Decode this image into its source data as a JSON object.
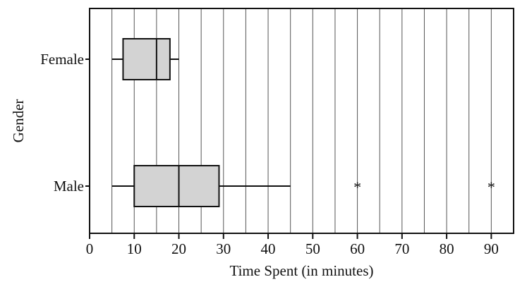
{
  "chart_data": {
    "type": "boxplot",
    "orientation": "horizontal",
    "title": "",
    "xlabel": "Time Spent (in minutes)",
    "ylabel": "Gender",
    "xlim": [
      0,
      95
    ],
    "xticks": [
      0,
      10,
      20,
      30,
      40,
      50,
      60,
      70,
      80,
      90
    ],
    "grid": {
      "vertical": true,
      "step": 5
    },
    "categories": [
      "Female",
      "Male"
    ],
    "boxes": [
      {
        "category": "Female",
        "whisker_low": 5,
        "q1": 7.5,
        "median": 15,
        "q3": 18,
        "whisker_high": 20,
        "outliers": []
      },
      {
        "category": "Male",
        "whisker_low": 5,
        "q1": 10,
        "median": 20,
        "q3": 29,
        "whisker_high": 45,
        "outliers": [
          60,
          90
        ]
      }
    ],
    "box_fill": "#d3d3d3",
    "outlier_marker": "*"
  }
}
